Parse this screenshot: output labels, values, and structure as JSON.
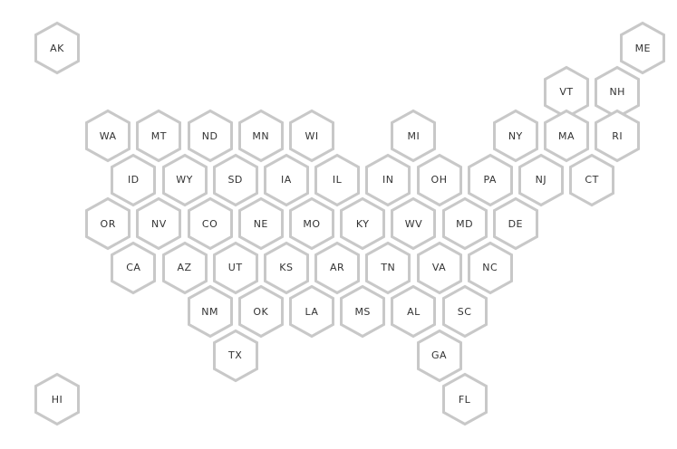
{
  "colors": {
    "fill": "#ffffff",
    "stroke": "#c8c8c8",
    "label": "#333333"
  },
  "states": [
    {
      "abbr": "AK",
      "row": 0,
      "col": 0
    },
    {
      "abbr": "ME",
      "row": 0,
      "col": 11.5
    },
    {
      "abbr": "VT",
      "row": 1,
      "col": 10
    },
    {
      "abbr": "NH",
      "row": 1,
      "col": 11
    },
    {
      "abbr": "WA",
      "row": 2,
      "col": 1
    },
    {
      "abbr": "MT",
      "row": 2,
      "col": 2
    },
    {
      "abbr": "ND",
      "row": 2,
      "col": 3
    },
    {
      "abbr": "MN",
      "row": 2,
      "col": 4
    },
    {
      "abbr": "WI",
      "row": 2,
      "col": 5
    },
    {
      "abbr": "MI",
      "row": 2,
      "col": 7
    },
    {
      "abbr": "NY",
      "row": 2,
      "col": 9
    },
    {
      "abbr": "MA",
      "row": 2,
      "col": 10
    },
    {
      "abbr": "RI",
      "row": 2,
      "col": 11
    },
    {
      "abbr": "ID",
      "row": 3,
      "col": 1.5
    },
    {
      "abbr": "WY",
      "row": 3,
      "col": 2.5
    },
    {
      "abbr": "SD",
      "row": 3,
      "col": 3.5
    },
    {
      "abbr": "IA",
      "row": 3,
      "col": 4.5
    },
    {
      "abbr": "IL",
      "row": 3,
      "col": 5.5
    },
    {
      "abbr": "IN",
      "row": 3,
      "col": 6.5
    },
    {
      "abbr": "OH",
      "row": 3,
      "col": 7.5
    },
    {
      "abbr": "PA",
      "row": 3,
      "col": 8.5
    },
    {
      "abbr": "NJ",
      "row": 3,
      "col": 9.5
    },
    {
      "abbr": "CT",
      "row": 3,
      "col": 10.5
    },
    {
      "abbr": "OR",
      "row": 4,
      "col": 1
    },
    {
      "abbr": "NV",
      "row": 4,
      "col": 2
    },
    {
      "abbr": "CO",
      "row": 4,
      "col": 3
    },
    {
      "abbr": "NE",
      "row": 4,
      "col": 4
    },
    {
      "abbr": "MO",
      "row": 4,
      "col": 5
    },
    {
      "abbr": "KY",
      "row": 4,
      "col": 6
    },
    {
      "abbr": "WV",
      "row": 4,
      "col": 7
    },
    {
      "abbr": "MD",
      "row": 4,
      "col": 8
    },
    {
      "abbr": "DE",
      "row": 4,
      "col": 9
    },
    {
      "abbr": "CA",
      "row": 5,
      "col": 1.5
    },
    {
      "abbr": "AZ",
      "row": 5,
      "col": 2.5
    },
    {
      "abbr": "UT",
      "row": 5,
      "col": 3.5
    },
    {
      "abbr": "KS",
      "row": 5,
      "col": 4.5
    },
    {
      "abbr": "AR",
      "row": 5,
      "col": 5.5
    },
    {
      "abbr": "TN",
      "row": 5,
      "col": 6.5
    },
    {
      "abbr": "VA",
      "row": 5,
      "col": 7.5
    },
    {
      "abbr": "NC",
      "row": 5,
      "col": 8.5
    },
    {
      "abbr": "NM",
      "row": 6,
      "col": 3
    },
    {
      "abbr": "OK",
      "row": 6,
      "col": 4
    },
    {
      "abbr": "LA",
      "row": 6,
      "col": 5
    },
    {
      "abbr": "MS",
      "row": 6,
      "col": 6
    },
    {
      "abbr": "AL",
      "row": 6,
      "col": 7
    },
    {
      "abbr": "SC",
      "row": 6,
      "col": 8
    },
    {
      "abbr": "TX",
      "row": 7,
      "col": 3.5
    },
    {
      "abbr": "GA",
      "row": 7,
      "col": 7.5
    },
    {
      "abbr": "HI",
      "row": 8,
      "col": 0
    },
    {
      "abbr": "FL",
      "row": 8,
      "col": 8
    }
  ]
}
